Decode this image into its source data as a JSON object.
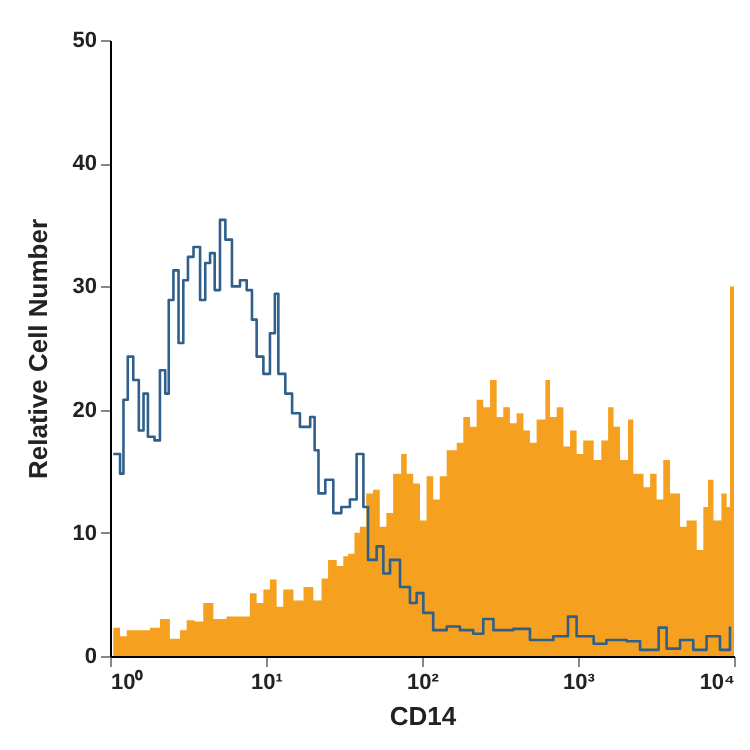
{
  "chart_data": {
    "type": "area",
    "xlabel": "CD14",
    "ylabel": "Relative Cell Number",
    "log": "x",
    "grid": false,
    "xlim": [
      1,
      10000
    ],
    "xticks": [
      {
        "value": 1,
        "label": "10⁰"
      },
      {
        "value": 10,
        "label": "10¹"
      },
      {
        "value": 100,
        "label": "10²"
      },
      {
        "value": 1000,
        "label": "10³"
      },
      {
        "value": 10000,
        "label": "10⁴"
      }
    ],
    "ylim": [
      0,
      50
    ],
    "yticks": [
      0,
      10,
      20,
      30,
      40,
      50
    ],
    "series": [
      {
        "color": "#f5a01e",
        "x": [
          1.05,
          1.16,
          1.28,
          1.56,
          1.8,
          2.09,
          2.42,
          2.81,
          3.1,
          3.48,
          3.96,
          4.6,
          5.58,
          7.16,
          7.88,
          8.71,
          9.62,
          10.6,
          11.7,
          12.9,
          15.0,
          17.4,
          20.1,
          22.7,
          25.0,
          28.4,
          31.3,
          33.6,
          36.9,
          40.0,
          43.9,
          48.6,
          53.6,
          59.1,
          65.3,
          73.5,
          79.8,
          87.8,
          97.1,
          107,
          118,
          130,
          144,
          167,
          184,
          203,
          224,
          247,
          273,
          301,
          332,
          366,
          404,
          447,
          492,
          543,
          618,
          662,
          730,
          806,
          889,
          980,
          1080,
          1260,
          1410,
          1560,
          1690,
          1860,
          2090,
          2260,
          2630,
          2900,
          3190,
          3520,
          3890,
          4510,
          4970,
          5770,
          6360,
          6810,
          7380,
          8300,
          8980,
          9420,
          10000
        ],
        "values": [
          2.3,
          1.6,
          2.1,
          2.1,
          2.3,
          3.0,
          1.4,
          2.1,
          2.9,
          2.8,
          4.3,
          3.0,
          3.2,
          3.2,
          5.1,
          4.3,
          5.4,
          6.2,
          4.0,
          5.4,
          4.5,
          5.6,
          4.5,
          6.3,
          7.8,
          7.3,
          8.1,
          8.3,
          10.0,
          10.5,
          13.2,
          13.5,
          10.5,
          11.6,
          14.8,
          16.4,
          14.8,
          14.0,
          11.0,
          14.6,
          12.7,
          14.6,
          16.7,
          17.3,
          19.4,
          18.6,
          20.8,
          20.2,
          22.4,
          19.4,
          20.2,
          18.9,
          19.7,
          18.3,
          17.3,
          19.2,
          22.4,
          19.4,
          20.2,
          17.0,
          18.3,
          16.4,
          17.5,
          15.9,
          17.5,
          20.2,
          18.6,
          15.9,
          19.2,
          14.8,
          13.7,
          14.8,
          12.7,
          15.9,
          13.2,
          10.5,
          11.0,
          8.6,
          12.1,
          14.3,
          11.0,
          13.2,
          12.1,
          30.0,
          30.0
        ]
      },
      {
        "type": "step",
        "color": "#2f5f8a",
        "x": [
          1.05,
          1.16,
          1.22,
          1.3,
          1.41,
          1.53,
          1.64,
          1.75,
          1.93,
          2.09,
          2.26,
          2.38,
          2.55,
          2.75,
          2.95,
          3.16,
          3.43,
          3.78,
          4.08,
          4.38,
          4.69,
          5.07,
          5.49,
          6.05,
          6.81,
          7.52,
          8.13,
          8.71,
          9.62,
          10.6,
          11.4,
          12.0,
          13.3,
          14.7,
          16.5,
          19.2,
          20.5,
          21.7,
          24.0,
          27.0,
          30.4,
          34.5,
          38.1,
          42.1,
          45.1,
          51.2,
          56.5,
          62.4,
          72.3,
          83.7,
          92.4,
          102,
          118,
          144,
          175,
          213,
          247,
          287,
          385,
          492,
          695,
          863,
          980,
          1260,
          1520,
          2050,
          2500,
          3290,
          3700,
          4510,
          5480,
          6670,
          8130,
          9420
        ],
        "values": [
          16.4,
          14.8,
          20.8,
          24.3,
          22.4,
          18.3,
          21.3,
          17.8,
          17.5,
          23.2,
          21.3,
          28.9,
          31.3,
          25.4,
          30.5,
          32.4,
          33.2,
          28.9,
          31.9,
          32.7,
          29.7,
          35.4,
          33.8,
          30.0,
          30.5,
          29.7,
          27.3,
          24.3,
          22.9,
          26.2,
          29.4,
          22.9,
          21.3,
          19.7,
          18.6,
          19.4,
          16.7,
          13.2,
          14.3,
          11.6,
          12.1,
          12.7,
          16.4,
          12.1,
          7.8,
          8.9,
          6.7,
          7.8,
          5.6,
          4.3,
          5.1,
          3.5,
          2.1,
          2.4,
          2.1,
          1.8,
          3.0,
          2.1,
          2.2,
          1.3,
          1.6,
          3.2,
          1.6,
          1.0,
          1.3,
          1.2,
          0.5,
          2.3,
          0.6,
          1.3,
          0.5,
          1.6,
          0.5,
          2.4
        ]
      }
    ]
  }
}
